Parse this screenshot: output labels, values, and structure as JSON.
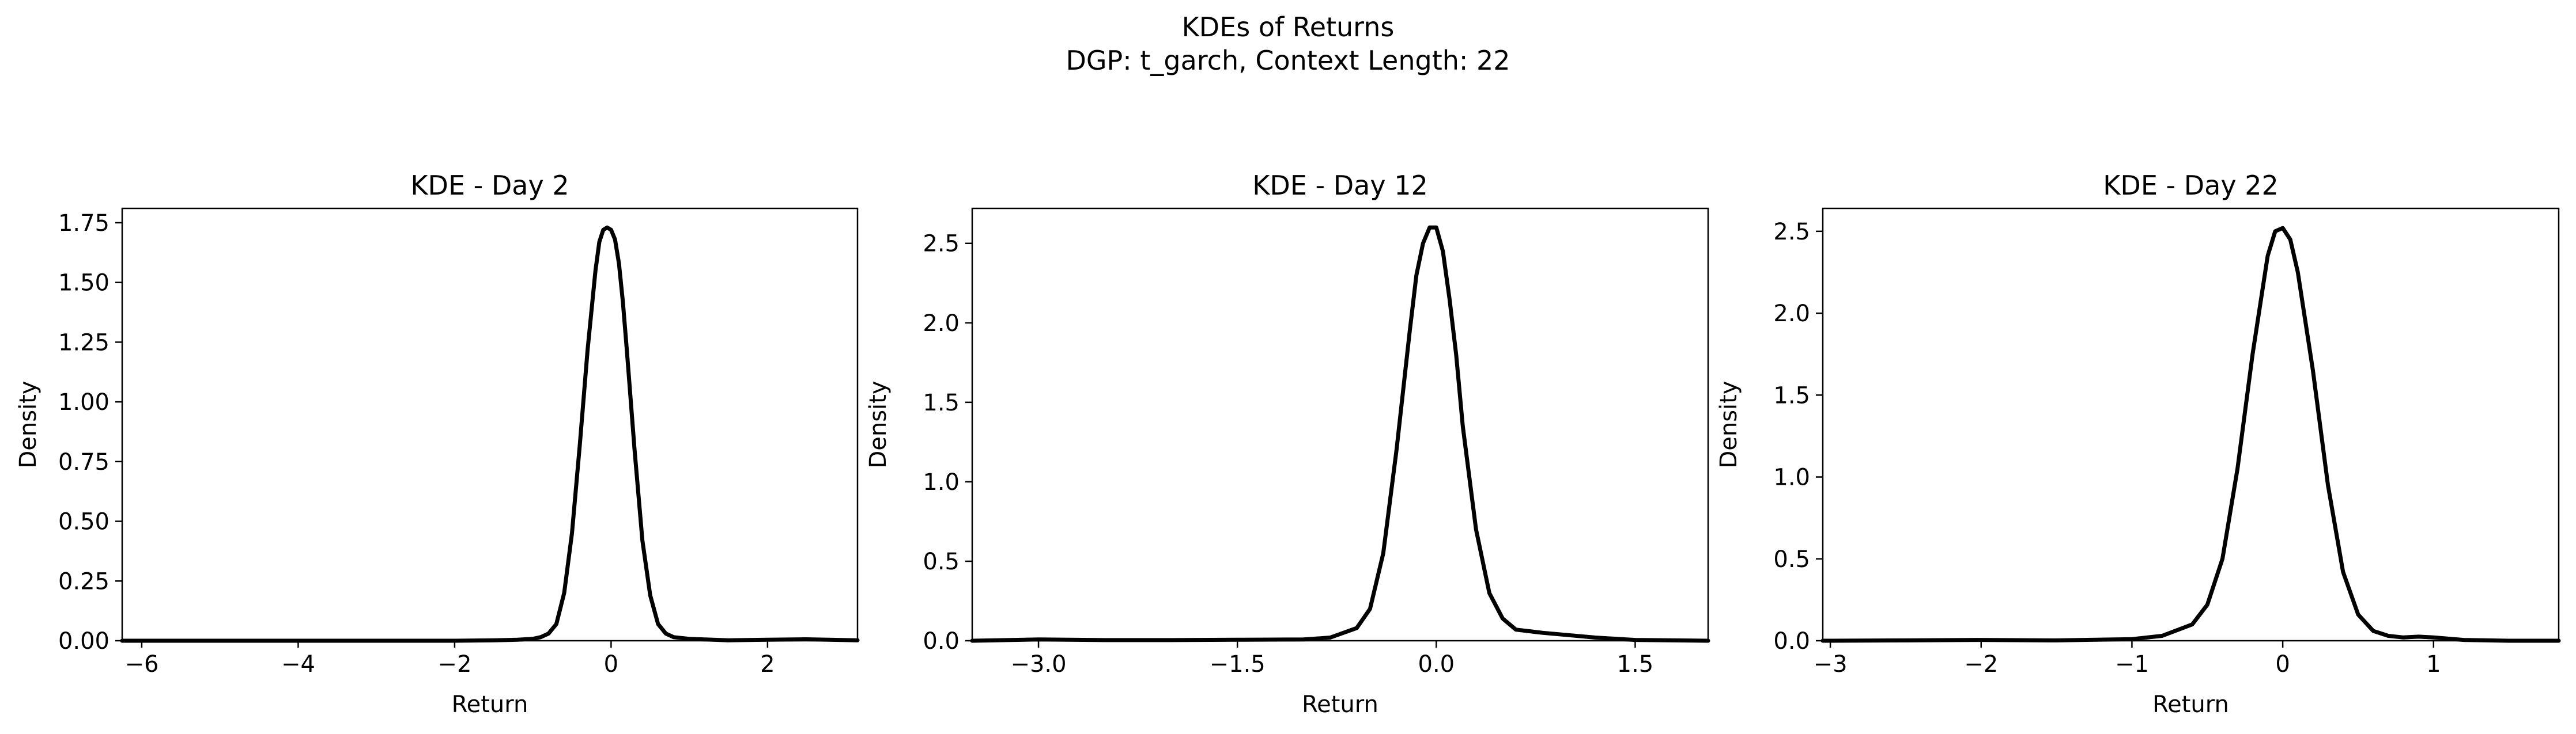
{
  "figure": {
    "title_line1": "KDEs of Returns",
    "title_line2": "DGP: t_garch, Context Length: 22"
  },
  "colors": {
    "line": "#000000",
    "axes": "#000000",
    "background": "#ffffff"
  },
  "chart_data": [
    {
      "type": "line",
      "title": "KDE - Day 2",
      "xlabel": "Return",
      "ylabel": "Density",
      "xlim": [
        -6.25,
        3.15
      ],
      "ylim": [
        0,
        1.81
      ],
      "xticks": [
        -6,
        -4,
        -2,
        0,
        2
      ],
      "xtick_labels": [
        "−6",
        "−4",
        "−2",
        "0",
        "2"
      ],
      "yticks": [
        0,
        0.25,
        0.5,
        0.75,
        1.0,
        1.25,
        1.5,
        1.75
      ],
      "ytick_labels": [
        "0.00",
        "0.25",
        "0.50",
        "0.75",
        "1.00",
        "1.25",
        "1.50",
        "1.75"
      ],
      "grid": false,
      "series": [
        {
          "x": [
            -6.25,
            -5,
            -4,
            -3,
            -2,
            -1.5,
            -1.2,
            -1.0,
            -0.9,
            -0.8,
            -0.7,
            -0.6,
            -0.5,
            -0.4,
            -0.3,
            -0.2,
            -0.15,
            -0.1,
            -0.05,
            0.0,
            0.05,
            0.1,
            0.15,
            0.2,
            0.3,
            0.4,
            0.5,
            0.6,
            0.7,
            0.8,
            1.0,
            1.5,
            2.0,
            2.5,
            3.15
          ],
          "y": [
            0.0,
            0.0,
            0.0,
            0.0,
            0.0,
            0.002,
            0.004,
            0.008,
            0.015,
            0.03,
            0.07,
            0.2,
            0.45,
            0.82,
            1.22,
            1.55,
            1.67,
            1.72,
            1.73,
            1.72,
            1.68,
            1.58,
            1.42,
            1.22,
            0.8,
            0.42,
            0.19,
            0.07,
            0.03,
            0.015,
            0.008,
            0.002,
            0.004,
            0.006,
            0.002
          ]
        }
      ]
    },
    {
      "type": "line",
      "title": "KDE - Day 12",
      "xlabel": "Return",
      "ylabel": "Density",
      "xlim": [
        -3.5,
        2.05
      ],
      "ylim": [
        0,
        2.72
      ],
      "xticks": [
        -3.0,
        -1.5,
        0.0,
        1.5
      ],
      "xtick_labels": [
        "−3.0",
        "−1.5",
        "0.0",
        "1.5"
      ],
      "yticks": [
        0,
        0.5,
        1.0,
        1.5,
        2.0,
        2.5
      ],
      "ytick_labels": [
        "0.0",
        "0.5",
        "1.0",
        "1.5",
        "2.0",
        "2.5"
      ],
      "grid": false,
      "series": [
        {
          "x": [
            -3.5,
            -3.0,
            -2.5,
            -2.0,
            -1.5,
            -1.0,
            -0.8,
            -0.6,
            -0.5,
            -0.4,
            -0.3,
            -0.2,
            -0.15,
            -0.1,
            -0.05,
            0.0,
            0.05,
            0.1,
            0.15,
            0.2,
            0.3,
            0.4,
            0.5,
            0.6,
            0.8,
            1.0,
            1.2,
            1.5,
            2.05
          ],
          "y": [
            0.0,
            0.008,
            0.004,
            0.004,
            0.006,
            0.008,
            0.02,
            0.08,
            0.2,
            0.55,
            1.2,
            1.95,
            2.3,
            2.5,
            2.6,
            2.6,
            2.45,
            2.15,
            1.8,
            1.35,
            0.7,
            0.3,
            0.14,
            0.07,
            0.05,
            0.035,
            0.02,
            0.005,
            0.0
          ]
        }
      ]
    },
    {
      "type": "line",
      "title": "KDE - Day 22",
      "xlabel": "Return",
      "ylabel": "Density",
      "xlim": [
        -3.05,
        1.83
      ],
      "ylim": [
        0,
        2.64
      ],
      "xticks": [
        -3,
        -2,
        -1,
        0,
        1
      ],
      "xtick_labels": [
        "−3",
        "−2",
        "−1",
        "0",
        "1"
      ],
      "yticks": [
        0,
        0.5,
        1.0,
        1.5,
        2.0,
        2.5
      ],
      "ytick_labels": [
        "0.0",
        "0.5",
        "1.0",
        "1.5",
        "2.0",
        "2.5"
      ],
      "grid": false,
      "series": [
        {
          "x": [
            -3.05,
            -2.5,
            -2.0,
            -1.5,
            -1.0,
            -0.8,
            -0.6,
            -0.5,
            -0.4,
            -0.3,
            -0.2,
            -0.1,
            -0.05,
            0.0,
            0.05,
            0.1,
            0.2,
            0.3,
            0.4,
            0.5,
            0.6,
            0.7,
            0.8,
            0.9,
            1.0,
            1.2,
            1.5,
            1.83
          ],
          "y": [
            0.0,
            0.002,
            0.005,
            0.002,
            0.01,
            0.03,
            0.1,
            0.22,
            0.5,
            1.05,
            1.75,
            2.35,
            2.5,
            2.52,
            2.45,
            2.25,
            1.65,
            0.95,
            0.42,
            0.16,
            0.06,
            0.03,
            0.02,
            0.025,
            0.02,
            0.005,
            0.0,
            0.0
          ]
        }
      ]
    }
  ]
}
